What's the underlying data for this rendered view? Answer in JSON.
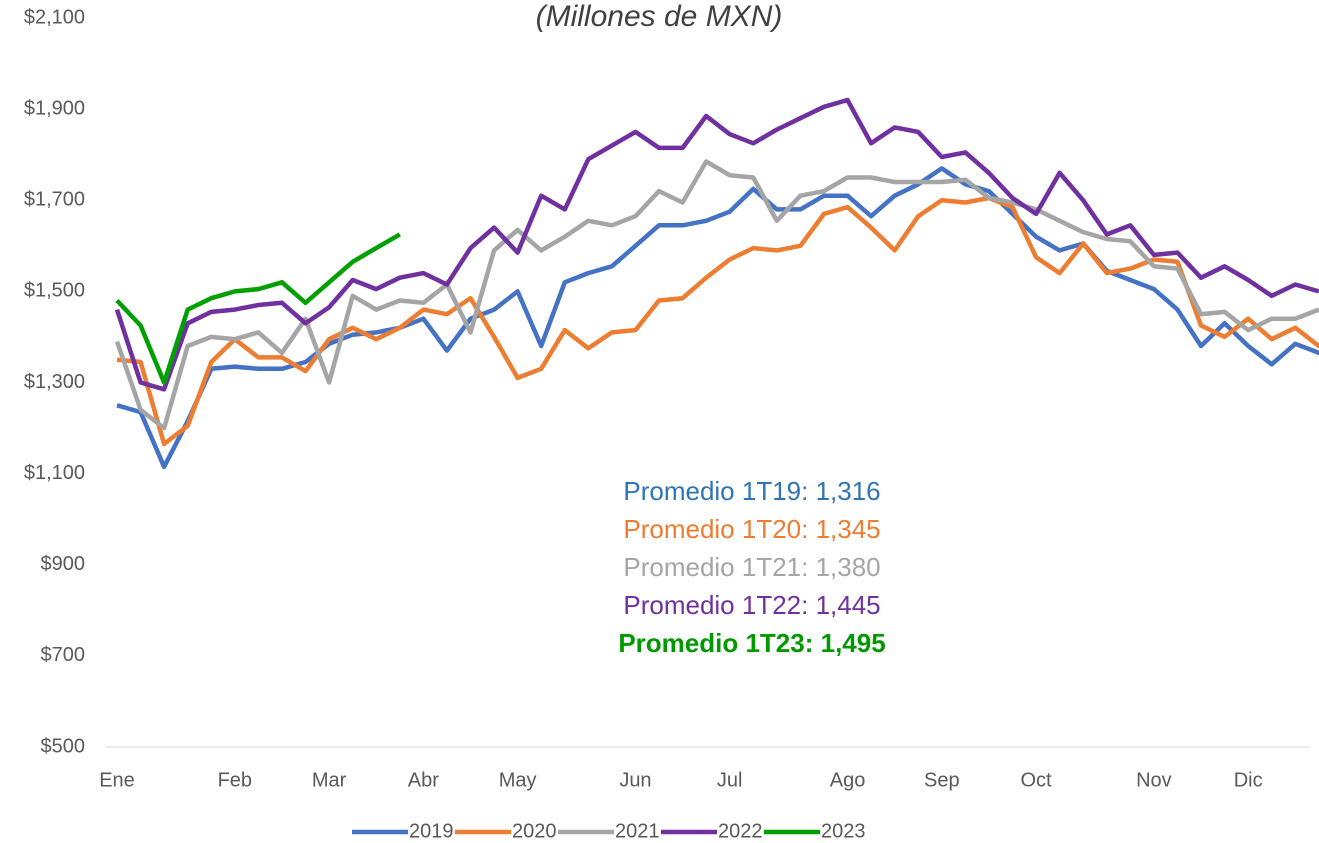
{
  "chart_data": {
    "type": "line",
    "title": "(Millones de MXN)",
    "categories": [
      "Ene",
      null,
      null,
      null,
      null,
      "Feb",
      null,
      null,
      null,
      "Mar",
      null,
      null,
      null,
      "Abr",
      null,
      null,
      null,
      "May",
      null,
      null,
      null,
      null,
      "Jun",
      null,
      null,
      null,
      "Jul",
      null,
      null,
      null,
      null,
      "Ago",
      null,
      null,
      null,
      "Sep",
      null,
      null,
      null,
      "Oct",
      null,
      null,
      null,
      null,
      "Nov",
      null,
      null,
      null,
      "Dic",
      null,
      null,
      null,
      null,
      null
    ],
    "series": [
      {
        "name": "2019",
        "color": "#4472c4",
        "values": [
          1250,
          1235,
          1115,
          1215,
          1330,
          1335,
          1330,
          1330,
          1345,
          1385,
          1405,
          1410,
          1420,
          1440,
          1370,
          1440,
          1460,
          1500,
          1380,
          1520,
          1540,
          1555,
          1600,
          1645,
          1645,
          1655,
          1675,
          1725,
          1680,
          1680,
          1710,
          1710,
          1665,
          1710,
          1735,
          1770,
          1735,
          1720,
          1670,
          1620,
          1590,
          1605,
          1545,
          1525,
          1505,
          1460,
          1380,
          1430,
          1380,
          1340,
          1385,
          1365,
          1375,
          null
        ]
      },
      {
        "name": "2020",
        "color": "#ed7d31",
        "values": [
          1350,
          1345,
          1165,
          1205,
          1345,
          1395,
          1355,
          1355,
          1325,
          1395,
          1420,
          1395,
          1420,
          1460,
          1450,
          1485,
          1400,
          1310,
          1330,
          1415,
          1375,
          1410,
          1415,
          1480,
          1485,
          1530,
          1570,
          1595,
          1590,
          1600,
          1670,
          1685,
          1640,
          1590,
          1665,
          1700,
          1695,
          1705,
          1685,
          1575,
          1540,
          1605,
          1540,
          1550,
          1570,
          1565,
          1425,
          1400,
          1440,
          1395,
          1420,
          1380,
          1375,
          1365
        ]
      },
      {
        "name": "2021",
        "color": "#a5a5a5",
        "values": [
          1390,
          1240,
          1200,
          1380,
          1400,
          1395,
          1410,
          1365,
          1440,
          1300,
          1490,
          1460,
          1480,
          1475,
          1515,
          1410,
          1590,
          1635,
          1590,
          1620,
          1655,
          1645,
          1665,
          1720,
          1695,
          1785,
          1755,
          1750,
          1655,
          1710,
          1720,
          1750,
          1750,
          1740,
          1740,
          1740,
          1745,
          1705,
          1695,
          1680,
          1655,
          1630,
          1615,
          1610,
          1555,
          1550,
          1450,
          1455,
          1415,
          1440,
          1440,
          1460,
          null,
          null
        ]
      },
      {
        "name": "2022",
        "color": "#7030a0",
        "values": [
          1460,
          1300,
          1285,
          1430,
          1455,
          1460,
          1470,
          1475,
          1430,
          1465,
          1525,
          1505,
          1530,
          1540,
          1515,
          1595,
          1640,
          1585,
          1710,
          1680,
          1790,
          1820,
          1850,
          1815,
          1815,
          1885,
          1845,
          1825,
          1855,
          1880,
          1905,
          1920,
          1825,
          1860,
          1850,
          1795,
          1805,
          1760,
          1705,
          1670,
          1760,
          1700,
          1625,
          1645,
          1580,
          1585,
          1530,
          1555,
          1525,
          1490,
          1515,
          1500,
          null,
          null
        ]
      },
      {
        "name": "2023",
        "color": "#00a000",
        "values": [
          1480,
          1425,
          1300,
          1460,
          1485,
          1500,
          1505,
          1520,
          1475,
          1520,
          1565,
          1595,
          1625,
          null,
          null,
          null,
          null,
          null,
          null,
          null,
          null,
          null,
          null,
          null,
          null,
          null,
          null,
          null,
          null,
          null,
          null,
          null,
          null,
          null,
          null,
          null,
          null,
          null,
          null,
          null,
          null,
          null,
          null,
          null,
          null,
          null,
          null,
          null,
          null,
          null,
          null,
          null,
          null,
          null
        ]
      }
    ],
    "ylim": [
      500,
      2100
    ],
    "yticks": [
      {
        "value": 500,
        "label": "$500"
      },
      {
        "value": 700,
        "label": "$700"
      },
      {
        "value": 900,
        "label": "$900"
      },
      {
        "value": 1100,
        "label": "$1,100"
      },
      {
        "value": 1300,
        "label": "$1,300"
      },
      {
        "value": 1500,
        "label": "$1,500"
      },
      {
        "value": 1700,
        "label": "$1,700"
      },
      {
        "value": 1900,
        "label": "$1,900"
      },
      {
        "value": 2100,
        "label": "$2,100"
      }
    ],
    "annotations": [
      {
        "text": "Promedio 1T19: 1,316",
        "color": "#2e75b6",
        "bold": false
      },
      {
        "text": "Promedio 1T20: 1,345",
        "color": "#ed7d31",
        "bold": false
      },
      {
        "text": "Promedio 1T21: 1,380",
        "color": "#a5a5a5",
        "bold": false
      },
      {
        "text": "Promedio 1T22: 1,445",
        "color": "#7030a0",
        "bold": false
      },
      {
        "text": "Promedio 1T23: 1,495",
        "color": "#009900",
        "bold": true
      }
    ],
    "legend": "bottom"
  }
}
